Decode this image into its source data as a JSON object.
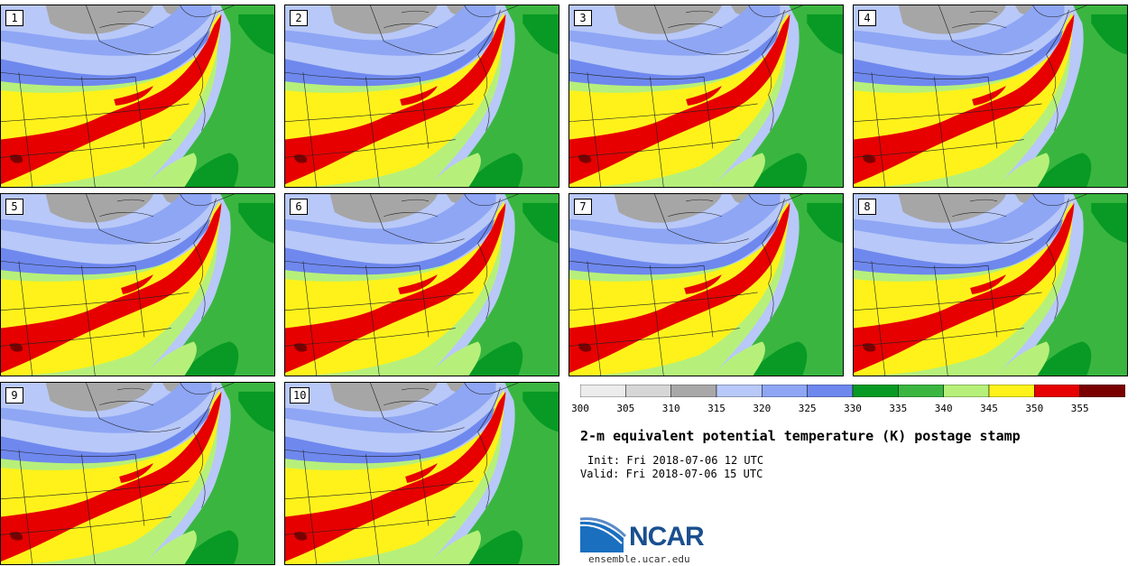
{
  "panels": [
    {
      "label": "1"
    },
    {
      "label": "2"
    },
    {
      "label": "3"
    },
    {
      "label": "4"
    },
    {
      "label": "5"
    },
    {
      "label": "6"
    },
    {
      "label": "7"
    },
    {
      "label": "8"
    },
    {
      "label": "9"
    },
    {
      "label": "10"
    }
  ],
  "colorbar": {
    "ticks": [
      "300",
      "305",
      "310",
      "315",
      "320",
      "325",
      "330",
      "335",
      "340",
      "345",
      "350",
      "355"
    ],
    "colors": [
      "#ececec",
      "#d6d6d6",
      "#a8a8a8",
      "#b8c8f8",
      "#8ea6f4",
      "#6e88ee",
      "#089a24",
      "#3ab640",
      "#b6f07a",
      "#fff21a",
      "#e60000",
      "#7a0000"
    ]
  },
  "map_colors": {
    "gray": "#a6a6a6",
    "light_blue": "#b8c8f8",
    "mid_blue": "#8ea6f4",
    "blue": "#6e88ee",
    "dark_green": "#089a24",
    "green": "#3ab640",
    "light_green": "#b6f07a",
    "yellow": "#fff21a",
    "red": "#e60000",
    "dark_red": "#7a0000"
  },
  "title": "2-m equivalent potential temperature (K) postage stamp",
  "init": "Init: Fri 2018-07-06 12 UTC",
  "valid": "Valid: Fri 2018-07-06 15 UTC",
  "logo_text": "NCAR",
  "site": "ensemble.ucar.edu"
}
